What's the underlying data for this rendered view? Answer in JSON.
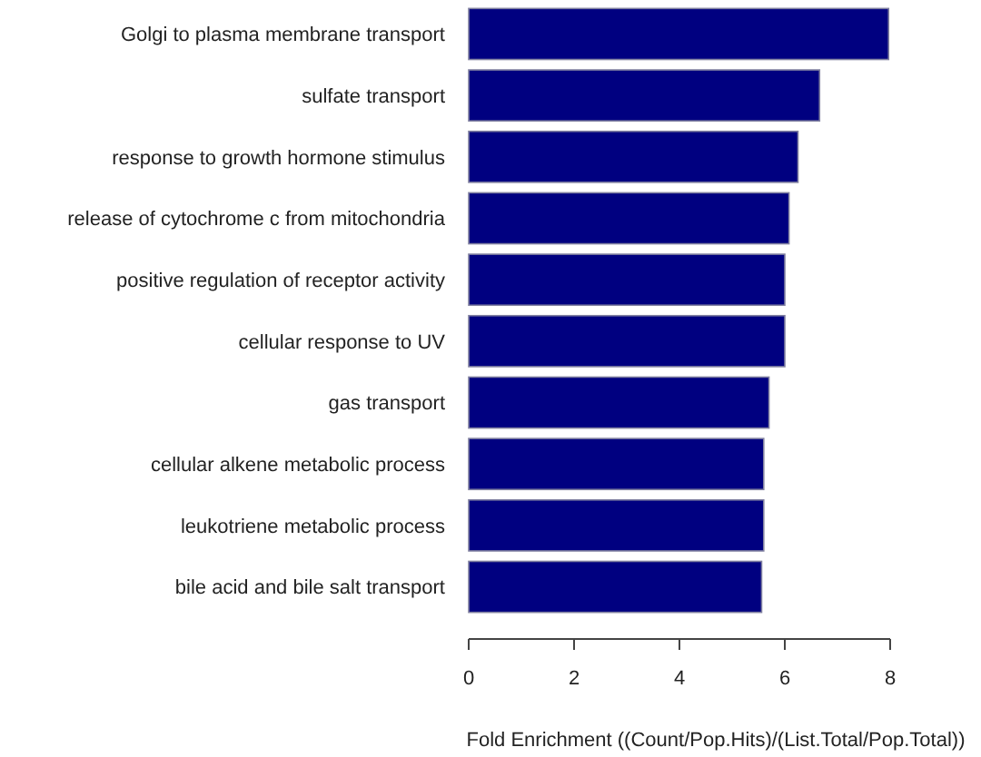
{
  "chart_data": {
    "type": "bar",
    "orientation": "horizontal",
    "xlabel": "Fold Enrichment ((Count/Pop.Hits)/(List.Total/Pop.Total))",
    "categories": [
      "Golgi to plasma membrane transport",
      "sulfate transport",
      "response to growth hormone stimulus",
      "release of cytochrome c from mitochondria",
      "positive regulation of receptor activity",
      "cellular response to UV",
      "gas transport",
      "cellular alkene metabolic process",
      "leukotriene metabolic process",
      "bile acid and bile salt transport"
    ],
    "values": [
      7.97,
      6.66,
      6.25,
      6.08,
      6.0,
      6.0,
      5.7,
      5.6,
      5.6,
      5.56
    ],
    "color": "#000080",
    "xlim": [
      0,
      8
    ],
    "xticks": [
      0,
      2,
      4,
      6,
      8
    ],
    "grid": false
  }
}
